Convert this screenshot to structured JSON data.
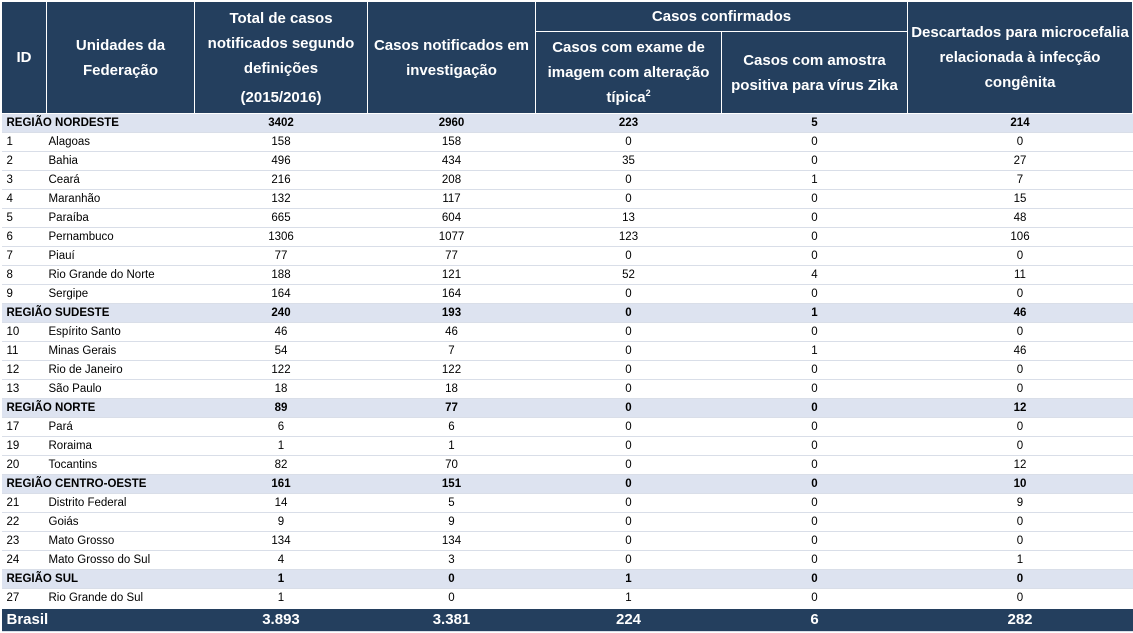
{
  "header": {
    "id": "ID",
    "uf": "Unidades da Federação",
    "total": "Total de casos notificados segundo definições",
    "total_period": "(2015/2016)",
    "investigacao": "Casos notificados em investigação",
    "confirmados": "Casos confirmados",
    "imagem": "Casos com exame de imagem com alteração típica",
    "imagem_sup": "2",
    "zika": "Casos com amostra positiva para vírus Zika",
    "descartados": "Descartados para microcefalia relacionada à infecção congênita"
  },
  "regions": [
    {
      "name": "REGIÃO NORDESTE",
      "total": "3402",
      "investigacao": "2960",
      "imagem": "223",
      "zika": "5",
      "descartados": "214",
      "states": [
        {
          "id": "1",
          "name": "Alagoas",
          "total": "158",
          "investigacao": "158",
          "imagem": "0",
          "zika": "0",
          "descartados": "0"
        },
        {
          "id": "2",
          "name": "Bahia",
          "total": "496",
          "investigacao": "434",
          "imagem": "35",
          "zika": "0",
          "descartados": "27"
        },
        {
          "id": "3",
          "name": "Ceará",
          "total": "216",
          "investigacao": "208",
          "imagem": "0",
          "zika": "1",
          "descartados": "7"
        },
        {
          "id": "4",
          "name": "Maranhão",
          "total": "132",
          "investigacao": "117",
          "imagem": "0",
          "zika": "0",
          "descartados": "15"
        },
        {
          "id": "5",
          "name": "Paraíba",
          "total": "665",
          "investigacao": "604",
          "imagem": "13",
          "zika": "0",
          "descartados": "48"
        },
        {
          "id": "6",
          "name": "Pernambuco",
          "total": "1306",
          "investigacao": "1077",
          "imagem": "123",
          "zika": "0",
          "descartados": "106"
        },
        {
          "id": "7",
          "name": "Piauí",
          "total": "77",
          "investigacao": "77",
          "imagem": "0",
          "zika": "0",
          "descartados": "0"
        },
        {
          "id": "8",
          "name": "Rio Grande do Norte",
          "total": "188",
          "investigacao": "121",
          "imagem": "52",
          "zika": "4",
          "descartados": "11"
        },
        {
          "id": "9",
          "name": "Sergipe",
          "total": "164",
          "investigacao": "164",
          "imagem": "0",
          "zika": "0",
          "descartados": "0"
        }
      ]
    },
    {
      "name": "REGIÃO SUDESTE",
      "total": "240",
      "investigacao": "193",
      "imagem": "0",
      "zika": "1",
      "descartados": "46",
      "states": [
        {
          "id": "10",
          "name": "Espírito Santo",
          "total": "46",
          "investigacao": "46",
          "imagem": "0",
          "zika": "0",
          "descartados": "0"
        },
        {
          "id": "11",
          "name": "Minas Gerais",
          "total": "54",
          "investigacao": "7",
          "imagem": "0",
          "zika": "1",
          "descartados": "46"
        },
        {
          "id": "12",
          "name": "Rio de Janeiro",
          "total": "122",
          "investigacao": "122",
          "imagem": "0",
          "zika": "0",
          "descartados": "0"
        },
        {
          "id": "13",
          "name": "São Paulo",
          "total": "18",
          "investigacao": "18",
          "imagem": "0",
          "zika": "0",
          "descartados": "0"
        }
      ]
    },
    {
      "name": "REGIÃO NORTE",
      "total": "89",
      "investigacao": "77",
      "imagem": "0",
      "zika": "0",
      "descartados": "12",
      "states": [
        {
          "id": "17",
          "name": "Pará",
          "total": "6",
          "investigacao": "6",
          "imagem": "0",
          "zika": "0",
          "descartados": "0"
        },
        {
          "id": "19",
          "name": "Roraima",
          "total": "1",
          "investigacao": "1",
          "imagem": "0",
          "zika": "0",
          "descartados": "0"
        },
        {
          "id": "20",
          "name": "Tocantins",
          "total": "82",
          "investigacao": "70",
          "imagem": "0",
          "zika": "0",
          "descartados": "12"
        }
      ]
    },
    {
      "name": "REGIÃO CENTRO-OESTE",
      "total": "161",
      "investigacao": "151",
      "imagem": "0",
      "zika": "0",
      "descartados": "10",
      "states": [
        {
          "id": "21",
          "name": "Distrito Federal",
          "total": "14",
          "investigacao": "5",
          "imagem": "0",
          "zika": "0",
          "descartados": "9"
        },
        {
          "id": "22",
          "name": "Goiás",
          "total": "9",
          "investigacao": "9",
          "imagem": "0",
          "zika": "0",
          "descartados": "0"
        },
        {
          "id": "23",
          "name": "Mato Grosso",
          "total": "134",
          "investigacao": "134",
          "imagem": "0",
          "zika": "0",
          "descartados": "0"
        },
        {
          "id": "24",
          "name": "Mato Grosso do Sul",
          "total": "4",
          "investigacao": "3",
          "imagem": "0",
          "zika": "0",
          "descartados": "1"
        }
      ]
    },
    {
      "name": "REGIÃO SUL",
      "total": "1",
      "investigacao": "0",
      "imagem": "1",
      "zika": "0",
      "descartados": "0",
      "states": [
        {
          "id": "27",
          "name": "Rio Grande do Sul",
          "total": "1",
          "investigacao": "0",
          "imagem": "1",
          "zika": "0",
          "descartados": "0"
        }
      ]
    }
  ],
  "total": {
    "name": "Brasil",
    "total": "3.893",
    "investigacao": "3.381",
    "imagem": "224",
    "zika": "6",
    "descartados": "282"
  }
}
